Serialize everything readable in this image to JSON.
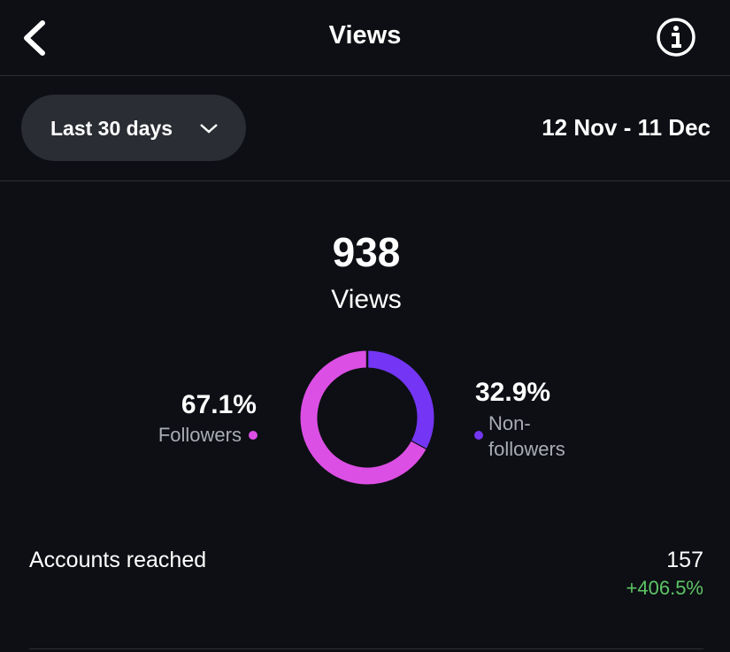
{
  "header": {
    "title": "Views"
  },
  "filter": {
    "range": "Last 30 days",
    "dates": "12 Nov - 11 Dec"
  },
  "summary": {
    "total": 938,
    "label": "Views"
  },
  "chart_data": {
    "type": "pie",
    "donut": true,
    "categories": [
      "Followers",
      "Non-followers"
    ],
    "values": [
      67.1,
      32.9
    ],
    "value_labels": [
      "67.1%",
      "32.9%"
    ],
    "colors": [
      "#dc4fe4",
      "#7436f4"
    ]
  },
  "accounts": {
    "label": "Accounts reached",
    "value": 157,
    "change": "+406.5%"
  }
}
